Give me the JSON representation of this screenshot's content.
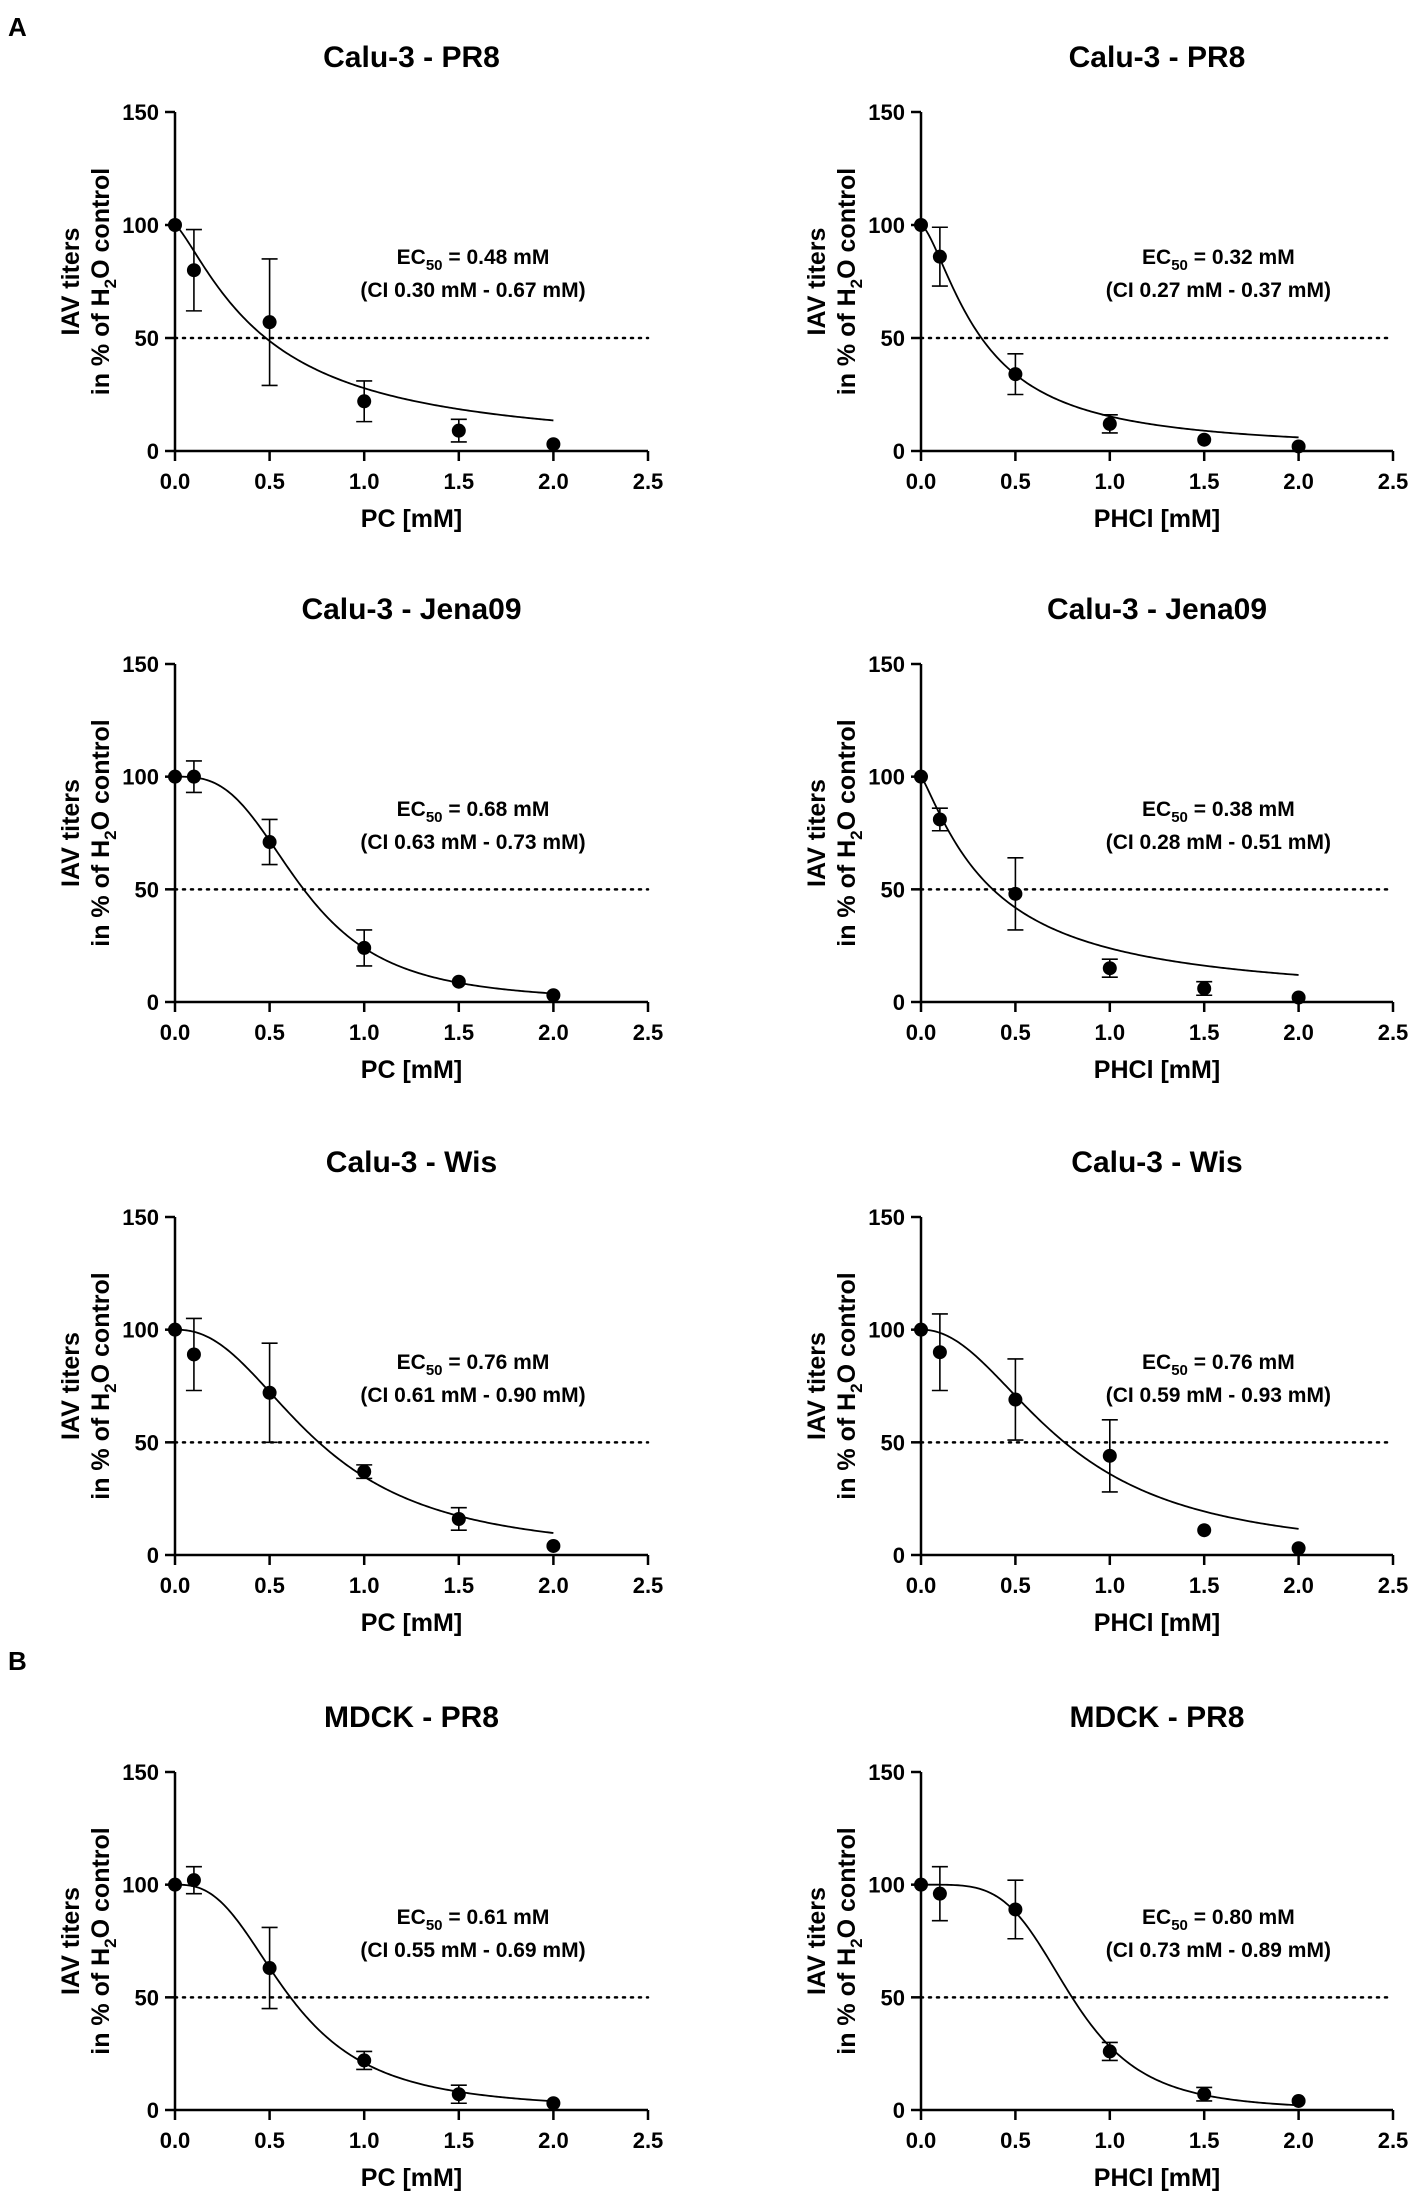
{
  "panel_labels": [
    "A",
    "B"
  ],
  "chart_data": [
    {
      "type": "scatter",
      "panel": "A",
      "title": "Calu-3 - PR8",
      "xlabel": "PC [mM]",
      "ylabel_line1": "IAV titers",
      "ylabel_line2_prefix": "in % of H",
      "ylabel_line2_sub": "2",
      "ylabel_line2_suffix": "O control",
      "xlim": [
        0,
        2.5
      ],
      "ylim": [
        0,
        150
      ],
      "xticks": [
        "0.0",
        "0.5",
        "1.0",
        "1.5",
        "2.0",
        "2.5"
      ],
      "yticks": [
        "0",
        "50",
        "100",
        "150"
      ],
      "reference_line_y": 50,
      "annotation_line1_prefix": "EC",
      "annotation_line1_sub": "50",
      "annotation_line1_suffix": " = 0.48 mM",
      "annotation_line2": "(CI 0.30 mM - 0.67 mM)",
      "ec50": 0.48,
      "hill": 1.3,
      "points": [
        {
          "x": 0,
          "y": 100,
          "err": 0
        },
        {
          "x": 0.1,
          "y": 80,
          "err": 18
        },
        {
          "x": 0.5,
          "y": 57,
          "err": 28
        },
        {
          "x": 1.0,
          "y": 22,
          "err": 9
        },
        {
          "x": 1.5,
          "y": 9,
          "err": 5
        },
        {
          "x": 2.0,
          "y": 3,
          "err": 0
        }
      ]
    },
    {
      "type": "scatter",
      "panel": "A",
      "title": "Calu-3 - PR8",
      "xlabel": "PHCl [mM]",
      "ylabel_line1": "IAV titers",
      "ylabel_line2_prefix": "in % of H",
      "ylabel_line2_sub": "2",
      "ylabel_line2_suffix": "O control",
      "xlim": [
        0,
        2.5
      ],
      "ylim": [
        0,
        150
      ],
      "xticks": [
        "0.0",
        "0.5",
        "1.0",
        "1.5",
        "2.0",
        "2.5"
      ],
      "yticks": [
        "0",
        "50",
        "100",
        "150"
      ],
      "reference_line_y": 50,
      "annotation_line1_prefix": "EC",
      "annotation_line1_sub": "50",
      "annotation_line1_suffix": " = 0.32 mM",
      "annotation_line2": "(CI 0.27 mM - 0.37 mM)",
      "ec50": 0.32,
      "hill": 1.5,
      "points": [
        {
          "x": 0,
          "y": 100,
          "err": 0
        },
        {
          "x": 0.1,
          "y": 86,
          "err": 13
        },
        {
          "x": 0.5,
          "y": 34,
          "err": 9
        },
        {
          "x": 1.0,
          "y": 12,
          "err": 4
        },
        {
          "x": 1.5,
          "y": 5,
          "err": 0
        },
        {
          "x": 2.0,
          "y": 2,
          "err": 0
        }
      ]
    },
    {
      "type": "scatter",
      "panel": "A",
      "title": "Calu-3 - Jena09",
      "xlabel": "PC [mM]",
      "ylabel_line1": "IAV titers",
      "ylabel_line2_prefix": "in % of H",
      "ylabel_line2_sub": "2",
      "ylabel_line2_suffix": "O control",
      "xlim": [
        0,
        2.5
      ],
      "ylim": [
        0,
        150
      ],
      "xticks": [
        "0.0",
        "0.5",
        "1.0",
        "1.5",
        "2.0",
        "2.5"
      ],
      "yticks": [
        "0",
        "50",
        "100",
        "150"
      ],
      "reference_line_y": 50,
      "annotation_line1_prefix": "EC",
      "annotation_line1_sub": "50",
      "annotation_line1_suffix": " = 0.68 mM",
      "annotation_line2": "(CI 0.63 mM - 0.73 mM)",
      "ec50": 0.68,
      "hill": 3.0,
      "points": [
        {
          "x": 0,
          "y": 100,
          "err": 0
        },
        {
          "x": 0.1,
          "y": 100,
          "err": 7
        },
        {
          "x": 0.5,
          "y": 71,
          "err": 10
        },
        {
          "x": 1.0,
          "y": 24,
          "err": 8
        },
        {
          "x": 1.5,
          "y": 9,
          "err": 0
        },
        {
          "x": 2.0,
          "y": 3,
          "err": 0
        }
      ]
    },
    {
      "type": "scatter",
      "panel": "A",
      "title": "Calu-3 - Jena09",
      "xlabel": "PHCl [mM]",
      "ylabel_line1": "IAV titers",
      "ylabel_line2_prefix": "in % of H",
      "ylabel_line2_sub": "2",
      "ylabel_line2_suffix": "O control",
      "xlim": [
        0,
        2.5
      ],
      "ylim": [
        0,
        150
      ],
      "xticks": [
        "0.0",
        "0.5",
        "1.0",
        "1.5",
        "2.0",
        "2.5"
      ],
      "yticks": [
        "0",
        "50",
        "100",
        "150"
      ],
      "reference_line_y": 50,
      "annotation_line1_prefix": "EC",
      "annotation_line1_sub": "50",
      "annotation_line1_suffix": " = 0.38 mM",
      "annotation_line2": "(CI 0.28 mM - 0.51 mM)",
      "ec50": 0.38,
      "hill": 1.2,
      "points": [
        {
          "x": 0,
          "y": 100,
          "err": 0
        },
        {
          "x": 0.1,
          "y": 81,
          "err": 5
        },
        {
          "x": 0.5,
          "y": 48,
          "err": 16
        },
        {
          "x": 1.0,
          "y": 15,
          "err": 4
        },
        {
          "x": 1.5,
          "y": 6,
          "err": 3
        },
        {
          "x": 2.0,
          "y": 2,
          "err": 0
        }
      ]
    },
    {
      "type": "scatter",
      "panel": "A",
      "title": "Calu-3 - Wis",
      "xlabel": "PC [mM]",
      "ylabel_line1": "IAV titers",
      "ylabel_line2_prefix": "in % of H",
      "ylabel_line2_sub": "2",
      "ylabel_line2_suffix": "O control",
      "xlim": [
        0,
        2.5
      ],
      "ylim": [
        0,
        150
      ],
      "xticks": [
        "0.0",
        "0.5",
        "1.0",
        "1.5",
        "2.0",
        "2.5"
      ],
      "yticks": [
        "0",
        "50",
        "100",
        "150"
      ],
      "reference_line_y": 50,
      "annotation_line1_prefix": "EC",
      "annotation_line1_sub": "50",
      "annotation_line1_suffix": " = 0.76 mM",
      "annotation_line2": "(CI 0.61 mM - 0.90 mM)",
      "ec50": 0.76,
      "hill": 2.3,
      "points": [
        {
          "x": 0,
          "y": 100,
          "err": 0
        },
        {
          "x": 0.1,
          "y": 89,
          "err": 16
        },
        {
          "x": 0.5,
          "y": 72,
          "err": 22
        },
        {
          "x": 1.0,
          "y": 37,
          "err": 3
        },
        {
          "x": 1.5,
          "y": 16,
          "err": 5
        },
        {
          "x": 2.0,
          "y": 4,
          "err": 0
        }
      ]
    },
    {
      "type": "scatter",
      "panel": "A",
      "title": "Calu-3 - Wis",
      "xlabel": "PHCl [mM]",
      "ylabel_line1": "IAV titers",
      "ylabel_line2_prefix": "in % of H",
      "ylabel_line2_sub": "2",
      "ylabel_line2_suffix": "O control",
      "xlim": [
        0,
        2.5
      ],
      "ylim": [
        0,
        150
      ],
      "xticks": [
        "0.0",
        "0.5",
        "1.0",
        "1.5",
        "2.0",
        "2.5"
      ],
      "yticks": [
        "0",
        "50",
        "100",
        "150"
      ],
      "reference_line_y": 50,
      "annotation_line1_prefix": "EC",
      "annotation_line1_sub": "50",
      "annotation_line1_suffix": " = 0.76 mM",
      "annotation_line2": "(CI 0.59 mM - 0.93 mM)",
      "ec50": 0.76,
      "hill": 2.1,
      "points": [
        {
          "x": 0,
          "y": 100,
          "err": 0
        },
        {
          "x": 0.1,
          "y": 90,
          "err": 17
        },
        {
          "x": 0.5,
          "y": 69,
          "err": 18
        },
        {
          "x": 1.0,
          "y": 44,
          "err": 16
        },
        {
          "x": 1.5,
          "y": 11,
          "err": 0
        },
        {
          "x": 2.0,
          "y": 3,
          "err": 0
        }
      ]
    },
    {
      "type": "scatter",
      "panel": "B",
      "title": "MDCK - PR8",
      "xlabel": "PC [mM]",
      "ylabel_line1": "IAV titers",
      "ylabel_line2_prefix": "in % of H",
      "ylabel_line2_sub": "2",
      "ylabel_line2_suffix": "O control",
      "xlim": [
        0,
        2.5
      ],
      "ylim": [
        0,
        150
      ],
      "xticks": [
        "0.0",
        "0.5",
        "1.0",
        "1.5",
        "2.0",
        "2.5"
      ],
      "yticks": [
        "0",
        "50",
        "100",
        "150"
      ],
      "reference_line_y": 50,
      "annotation_line1_prefix": "EC",
      "annotation_line1_sub": "50",
      "annotation_line1_suffix": " = 0.61 mM",
      "annotation_line2": "(CI 0.55 mM - 0.69 mM)",
      "ec50": 0.61,
      "hill": 2.7,
      "points": [
        {
          "x": 0,
          "y": 100,
          "err": 0
        },
        {
          "x": 0.1,
          "y": 102,
          "err": 6
        },
        {
          "x": 0.5,
          "y": 63,
          "err": 18
        },
        {
          "x": 1.0,
          "y": 22,
          "err": 4
        },
        {
          "x": 1.5,
          "y": 7,
          "err": 4
        },
        {
          "x": 2.0,
          "y": 3,
          "err": 0
        }
      ]
    },
    {
      "type": "scatter",
      "panel": "B",
      "title": "MDCK - PR8",
      "xlabel": "PHCl [mM]",
      "ylabel_line1": "IAV titers",
      "ylabel_line2_prefix": "in % of H",
      "ylabel_line2_sub": "2",
      "ylabel_line2_suffix": "O control",
      "xlim": [
        0,
        2.5
      ],
      "ylim": [
        0,
        150
      ],
      "xticks": [
        "0.0",
        "0.5",
        "1.0",
        "1.5",
        "2.0",
        "2.5"
      ],
      "yticks": [
        "0",
        "50",
        "100",
        "150"
      ],
      "reference_line_y": 50,
      "annotation_line1_prefix": "EC",
      "annotation_line1_sub": "50",
      "annotation_line1_suffix": " = 0.80 mM",
      "annotation_line2": "(CI 0.73 mM - 0.89 mM)",
      "ec50": 0.8,
      "hill": 4.2,
      "points": [
        {
          "x": 0,
          "y": 100,
          "err": 0
        },
        {
          "x": 0.1,
          "y": 96,
          "err": 12
        },
        {
          "x": 0.5,
          "y": 89,
          "err": 13
        },
        {
          "x": 1.0,
          "y": 26,
          "err": 4
        },
        {
          "x": 1.5,
          "y": 7,
          "err": 3
        },
        {
          "x": 2.0,
          "y": 4,
          "err": 0
        }
      ]
    }
  ]
}
